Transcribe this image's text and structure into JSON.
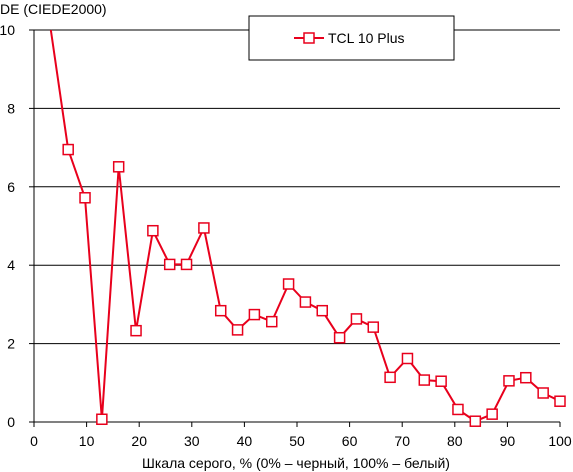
{
  "chart_data": {
    "type": "line",
    "title": "",
    "ylabel": "DE (CIEDE2000)",
    "xlabel": "Шкала серого, % (0% – черный, 100% – белый)",
    "xlim": [
      0,
      100
    ],
    "ylim": [
      0,
      10
    ],
    "xticks": [
      0,
      10,
      20,
      30,
      40,
      50,
      60,
      70,
      80,
      90,
      100
    ],
    "yticks": [
      0,
      2,
      4,
      6,
      8,
      10
    ],
    "grid": "horizontal",
    "legend_position": "top-right",
    "series": [
      {
        "name": "TCL 10 Plus",
        "color": "#e8001c",
        "marker": "square",
        "start_segment": {
          "x": [
            3.2,
            6.5
          ],
          "y": [
            10.0,
            6.95
          ]
        },
        "x": [
          6.5,
          9.7,
          12.9,
          16.1,
          19.4,
          22.6,
          25.8,
          29.0,
          32.3,
          35.5,
          38.7,
          41.9,
          45.2,
          48.4,
          51.6,
          54.8,
          58.1,
          61.3,
          64.5,
          67.7,
          71.0,
          74.2,
          77.4,
          80.6,
          83.9,
          87.1,
          90.3,
          93.5,
          96.8,
          100.0
        ],
        "y": [
          6.95,
          5.72,
          0.07,
          6.51,
          2.33,
          4.88,
          4.02,
          4.02,
          4.95,
          2.84,
          2.35,
          2.74,
          2.56,
          3.52,
          3.06,
          2.84,
          2.15,
          2.63,
          2.42,
          1.14,
          1.62,
          1.07,
          1.04,
          0.32,
          0.02,
          0.2,
          1.05,
          1.13,
          0.74,
          0.53
        ]
      }
    ]
  }
}
